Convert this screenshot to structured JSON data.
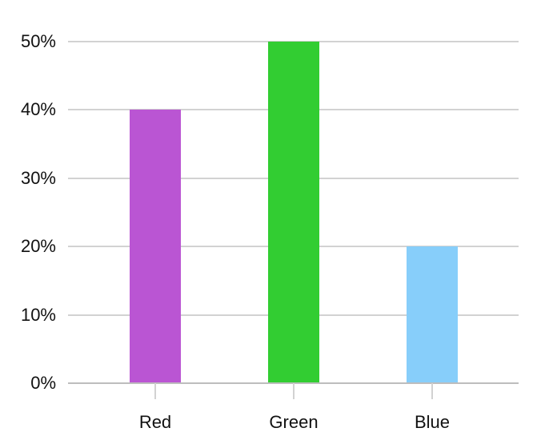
{
  "page": {
    "background": "#ffffff"
  },
  "chart_data": {
    "type": "bar",
    "title": "",
    "xlabel": "",
    "ylabel": "",
    "categories": [
      "Red",
      "Green",
      "Blue"
    ],
    "values": [
      40,
      50,
      20
    ],
    "value_unit": "%",
    "bar_colors": [
      "#ba55d3",
      "#32cd32",
      "#87cefa"
    ],
    "y_axis": {
      "tick_values": [
        0,
        10,
        20,
        30,
        40,
        50
      ],
      "tick_labels": [
        "0%",
        "10%",
        "20%",
        "30%",
        "40%",
        "50%"
      ],
      "range": [
        0,
        50
      ]
    },
    "x_axis": {
      "tick_labels": [
        "Red",
        "Green",
        "Blue"
      ]
    },
    "grid": true,
    "legend": false,
    "colors": {
      "grid_line": "#d2d2d2",
      "axis_line": "#bdbdbd",
      "tick_mark": "#d2d2d2",
      "label_text": "#111111",
      "background": "#ffffff"
    }
  }
}
